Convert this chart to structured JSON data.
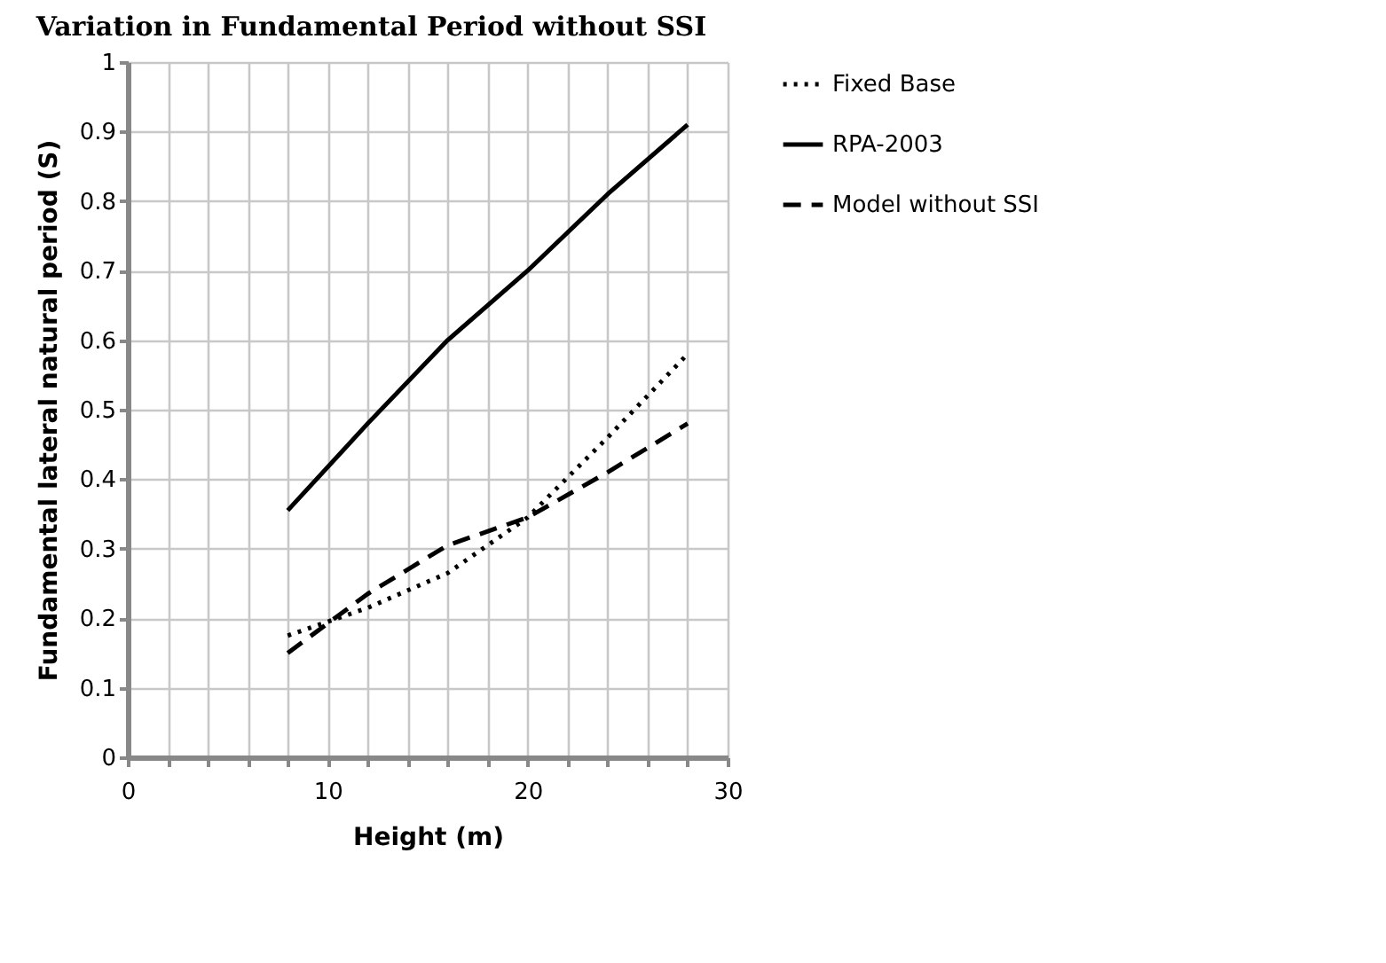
{
  "chart_data": {
    "type": "line",
    "title": "Variation in Fundamental Period without SSI",
    "xlabel": "Height (m)",
    "ylabel": "Fundamental lateral natural period (S)",
    "x": [
      8,
      12,
      16,
      20,
      24,
      28
    ],
    "series": [
      {
        "name": "Fixed Base",
        "color": "#000000",
        "line_style": "dotted",
        "values": [
          0.175,
          0.215,
          0.265,
          0.345,
          0.46,
          0.58
        ]
      },
      {
        "name": "RPA-2003",
        "color": "#000000",
        "line_style": "solid",
        "values": [
          0.355,
          0.48,
          0.6,
          0.7,
          0.81,
          0.91
        ]
      },
      {
        "name": "Model without SSI",
        "color": "#000000",
        "line_style": "dashed",
        "values": [
          0.15,
          0.235,
          0.305,
          0.345,
          0.41,
          0.48
        ]
      }
    ],
    "xlim": [
      0,
      30
    ],
    "xticks": [
      0,
      {
        "value": 2,
        "label": null
      },
      {
        "value": 4,
        "label": null
      },
      {
        "value": 6,
        "label": null
      },
      {
        "value": 8,
        "label": null
      },
      10,
      {
        "value": 12,
        "label": null
      },
      {
        "value": 14,
        "label": null
      },
      {
        "value": 16,
        "label": null
      },
      {
        "value": 18,
        "label": null
      },
      20,
      {
        "value": 22,
        "label": null
      },
      {
        "value": 24,
        "label": null
      },
      {
        "value": 26,
        "label": null
      },
      {
        "value": 28,
        "label": null
      },
      30
    ],
    "ylim": [
      0,
      1
    ],
    "yticks": [
      0,
      0.1,
      0.2,
      0.3,
      0.4,
      0.5,
      0.6,
      0.7,
      0.8,
      0.9,
      1
    ],
    "grid": true,
    "legend": "right",
    "marker": "none"
  }
}
